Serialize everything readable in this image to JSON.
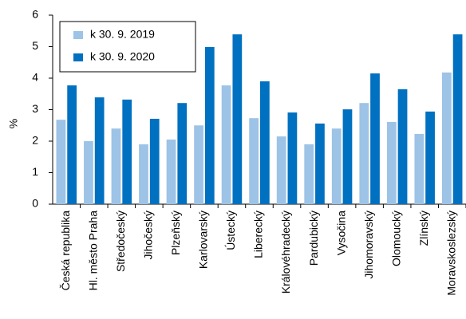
{
  "chart_data": {
    "type": "bar",
    "y_label": "%",
    "categories": [
      "Česká republika",
      "Hl. město Praha",
      "Středočeský",
      "Jihočeský",
      "Plzeňský",
      "Karlovarský",
      "Ústecký",
      "Liberecký",
      "Královéhradecký",
      "Pardubický",
      "Vysočina",
      "Jihomoravský",
      "Olomoucký",
      "Zlínský",
      "Moravskoslezský"
    ],
    "series": [
      {
        "name": "k 30. 9. 2019",
        "color": "#9dc3e6",
        "values": [
          2.68,
          2.0,
          2.4,
          1.9,
          2.05,
          2.5,
          3.77,
          2.73,
          2.15,
          1.9,
          2.4,
          3.21,
          2.61,
          2.23,
          4.18
        ]
      },
      {
        "name": "k 30. 9. 2020",
        "color": "#0070c0",
        "values": [
          3.77,
          3.39,
          3.32,
          2.71,
          3.21,
          4.99,
          5.39,
          3.9,
          2.91,
          2.56,
          3.01,
          4.15,
          3.65,
          2.94,
          5.39
        ]
      }
    ],
    "ylim": [
      0,
      6
    ],
    "yticks": [
      0,
      1,
      2,
      3,
      4,
      5,
      6
    ],
    "legend": "top-left"
  }
}
